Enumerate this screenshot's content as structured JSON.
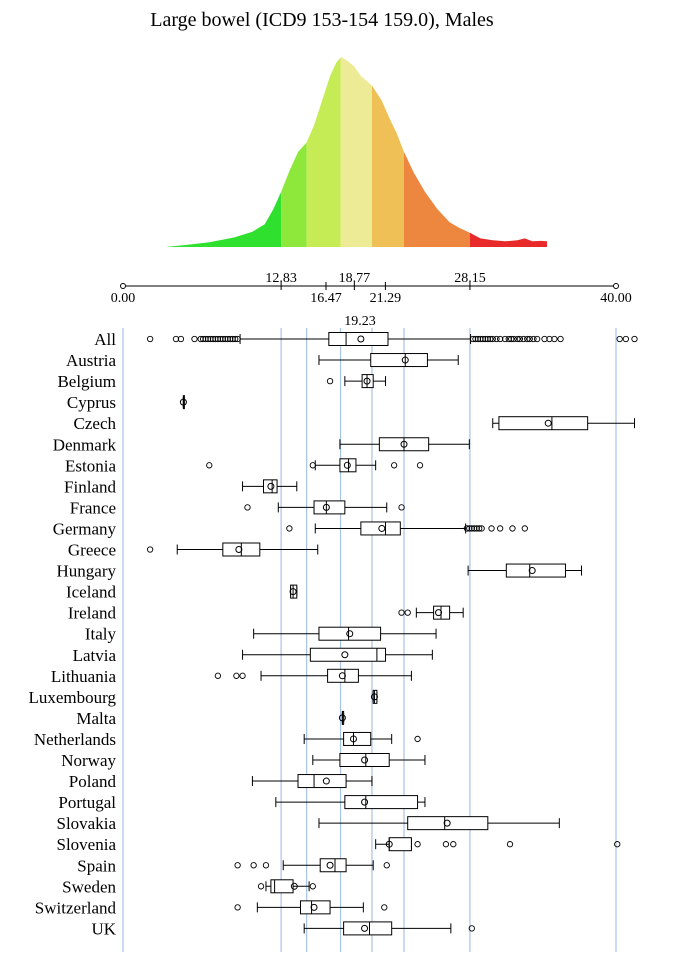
{
  "chart_data": {
    "type": "boxplot",
    "title": "Large bowel (ICD9 153-154 159.0), Males",
    "xlim": [
      0,
      40
    ],
    "axis_ticks": [
      0,
      40
    ],
    "axis_tick_labels": [
      "0.00",
      "40.00"
    ],
    "density_breaks": [
      12.83,
      16.47,
      18.77,
      21.29,
      28.15
    ],
    "density_break_labels": [
      "12.83",
      "16.47",
      "18.77",
      "21.29",
      "28.15"
    ],
    "median_value": 19.23,
    "median_label": "19.23",
    "reference_lines": [
      0,
      12.83,
      14.9,
      17.65,
      20.2,
      22.8,
      28.15,
      40
    ],
    "density_bands": [
      {
        "from": 3.6,
        "to": 12.83,
        "color": "#2fe02f"
      },
      {
        "from": 12.83,
        "to": 14.9,
        "color": "#8ee83c"
      },
      {
        "from": 14.9,
        "to": 17.65,
        "color": "#c5ec55"
      },
      {
        "from": 17.65,
        "to": 20.2,
        "color": "#eeeb97"
      },
      {
        "from": 20.2,
        "to": 22.8,
        "color": "#eec055"
      },
      {
        "from": 22.8,
        "to": 28.15,
        "color": "#ed8740"
      },
      {
        "from": 28.15,
        "to": 34.4,
        "color": "#e82a2a"
      }
    ],
    "density_curve": [
      [
        3.3,
        0.0
      ],
      [
        5,
        0.01
      ],
      [
        7,
        0.025
      ],
      [
        9,
        0.05
      ],
      [
        10.5,
        0.08
      ],
      [
        11.5,
        0.12
      ],
      [
        12.2,
        0.2
      ],
      [
        12.83,
        0.29
      ],
      [
        13.5,
        0.4
      ],
      [
        14.2,
        0.5
      ],
      [
        14.9,
        0.55
      ],
      [
        15.5,
        0.64
      ],
      [
        16.2,
        0.78
      ],
      [
        16.8,
        0.9
      ],
      [
        17.3,
        0.97
      ],
      [
        17.7,
        1.0
      ],
      [
        18.2,
        0.98
      ],
      [
        18.77,
        0.95
      ],
      [
        19.3,
        0.9
      ],
      [
        20.2,
        0.85
      ],
      [
        21.0,
        0.77
      ],
      [
        21.6,
        0.68
      ],
      [
        22.2,
        0.6
      ],
      [
        22.8,
        0.5
      ],
      [
        23.6,
        0.39
      ],
      [
        24.5,
        0.29
      ],
      [
        25.5,
        0.2
      ],
      [
        26.5,
        0.13
      ],
      [
        27.3,
        0.1
      ],
      [
        28.15,
        0.075
      ],
      [
        29,
        0.045
      ],
      [
        30,
        0.035
      ],
      [
        31,
        0.03
      ],
      [
        32,
        0.035
      ],
      [
        32.6,
        0.045
      ],
      [
        33.2,
        0.03
      ],
      [
        33.9,
        0.032
      ],
      [
        34.4,
        0.03
      ]
    ],
    "categories": [
      "All",
      "Austria",
      "Belgium",
      "Cyprus",
      "Czech",
      "Denmark",
      "Estonia",
      "Finland",
      "France",
      "Germany",
      "Greece",
      "Hungary",
      "Iceland",
      "Ireland",
      "Italy",
      "Latvia",
      "Lithuania",
      "Luxembourg",
      "Malta",
      "Netherlands",
      "Norway",
      "Poland",
      "Portugal",
      "Slovakia",
      "Slovenia",
      "Spain",
      "Sweden",
      "Switzerland",
      "UK"
    ],
    "boxes": [
      {
        "wlo": 9.5,
        "q1": 16.7,
        "med": 18.1,
        "q3": 21.5,
        "whi": 28.2,
        "mean": 19.3,
        "outliers": [
          2.2,
          4.3,
          4.7,
          5.8,
          6.3,
          6.5,
          6.7,
          6.9,
          7.1,
          7.3,
          7.5,
          7.7,
          7.9,
          8.1,
          8.3,
          8.5,
          8.7,
          8.9,
          9.1,
          9.3,
          28.4,
          28.6,
          28.8,
          29.0,
          29.2,
          29.4,
          29.6,
          29.8,
          30.0,
          30.3,
          30.6,
          31.0,
          31.3,
          31.5,
          31.7,
          32.0,
          32.2,
          32.5,
          32.8,
          33.0,
          33.3,
          33.6,
          34.2,
          34.6,
          35.0,
          35.5,
          40.3,
          40.8,
          41.5
        ]
      },
      {
        "wlo": 15.9,
        "q1": 20.1,
        "med": 22.9,
        "q3": 24.7,
        "whi": 27.2,
        "mean": 22.9,
        "outliers": []
      },
      {
        "wlo": 18.0,
        "q1": 19.4,
        "med": 19.8,
        "q3": 20.3,
        "whi": 21.3,
        "mean": 19.8,
        "outliers": [
          16.8
        ]
      },
      {
        "wlo": 4.9,
        "q1": 4.9,
        "med": 4.9,
        "q3": 4.9,
        "whi": 4.9,
        "mean": 4.9,
        "outliers": []
      },
      {
        "wlo": 30.0,
        "q1": 30.5,
        "med": 34.8,
        "q3": 37.7,
        "whi": 41.5,
        "mean": 34.5,
        "outliers": []
      },
      {
        "wlo": 17.6,
        "q1": 20.8,
        "med": 22.8,
        "q3": 24.8,
        "whi": 28.1,
        "mean": 22.8,
        "outliers": []
      },
      {
        "wlo": 15.6,
        "q1": 17.6,
        "med": 18.3,
        "q3": 18.9,
        "whi": 20.5,
        "mean": 18.2,
        "outliers": [
          7.0,
          15.4,
          22.0,
          24.1
        ]
      },
      {
        "wlo": 9.7,
        "q1": 11.4,
        "med": 12.1,
        "q3": 12.5,
        "whi": 14.1,
        "mean": 12.0,
        "outliers": []
      },
      {
        "wlo": 12.6,
        "q1": 15.5,
        "med": 16.5,
        "q3": 18.0,
        "whi": 21.4,
        "mean": 16.5,
        "outliers": [
          10.1,
          22.6
        ]
      },
      {
        "wlo": 15.6,
        "q1": 19.3,
        "med": 21.3,
        "q3": 22.5,
        "whi": 27.8,
        "mean": 21.0,
        "outliers": [
          13.5,
          27.9,
          28.1,
          28.3,
          28.5,
          28.7,
          28.9,
          29.1,
          29.9,
          30.6,
          31.6,
          32.6
        ]
      },
      {
        "wlo": 4.4,
        "q1": 8.1,
        "med": 9.6,
        "q3": 11.1,
        "whi": 15.8,
        "mean": 9.4,
        "outliers": [
          2.2
        ]
      },
      {
        "wlo": 28.0,
        "q1": 31.1,
        "med": 33.0,
        "q3": 35.9,
        "whi": 37.2,
        "mean": 33.2,
        "outliers": []
      },
      {
        "wlo": 13.6,
        "q1": 13.6,
        "med": 13.8,
        "q3": 14.1,
        "whi": 14.1,
        "mean": 13.8,
        "outliers": []
      },
      {
        "wlo": 23.8,
        "q1": 25.2,
        "med": 25.8,
        "q3": 26.5,
        "whi": 27.6,
        "mean": 25.6,
        "outliers": [
          22.6,
          23.1
        ]
      },
      {
        "wlo": 10.6,
        "q1": 15.9,
        "med": 18.3,
        "q3": 20.9,
        "whi": 25.4,
        "mean": 18.4,
        "outliers": []
      },
      {
        "wlo": 9.7,
        "q1": 15.2,
        "med": 20.6,
        "q3": 21.3,
        "whi": 25.1,
        "mean": 18.0,
        "outliers": []
      },
      {
        "wlo": 11.2,
        "q1": 16.6,
        "med": 18.0,
        "q3": 19.1,
        "whi": 23.4,
        "mean": 17.8,
        "outliers": [
          7.7,
          9.2,
          9.7
        ]
      },
      {
        "wlo": 20.3,
        "q1": 20.3,
        "med": 20.4,
        "q3": 20.6,
        "whi": 20.6,
        "mean": 20.4,
        "outliers": []
      },
      {
        "wlo": 17.8,
        "q1": 17.8,
        "med": 17.8,
        "q3": 17.9,
        "whi": 17.9,
        "mean": 17.8,
        "outliers": []
      },
      {
        "wlo": 14.7,
        "q1": 17.9,
        "med": 18.7,
        "q3": 20.1,
        "whi": 21.8,
        "mean": 18.7,
        "outliers": [
          23.9
        ]
      },
      {
        "wlo": 15.4,
        "q1": 17.6,
        "med": 19.7,
        "q3": 21.6,
        "whi": 24.5,
        "mean": 19.6,
        "outliers": []
      },
      {
        "wlo": 10.5,
        "q1": 14.2,
        "med": 15.5,
        "q3": 18.1,
        "whi": 20.2,
        "mean": 16.5,
        "outliers": []
      },
      {
        "wlo": 12.4,
        "q1": 18.0,
        "med": 19.7,
        "q3": 23.9,
        "whi": 24.5,
        "mean": 19.6,
        "outliers": []
      },
      {
        "wlo": 15.9,
        "q1": 23.1,
        "med": 26.1,
        "q3": 29.6,
        "whi": 35.4,
        "mean": 26.3,
        "outliers": []
      },
      {
        "wlo": 20.5,
        "q1": 21.6,
        "med": 21.6,
        "q3": 23.4,
        "whi": 23.4,
        "mean": 21.6,
        "outliers": [
          23.9,
          26.2,
          26.8,
          31.4,
          40.1
        ]
      },
      {
        "wlo": 13.0,
        "q1": 16.0,
        "med": 17.2,
        "q3": 18.1,
        "whi": 20.3,
        "mean": 16.8,
        "outliers": [
          9.3,
          10.6,
          11.6,
          21.4
        ]
      },
      {
        "wlo": 11.6,
        "q1": 12.0,
        "med": 12.3,
        "q3": 13.8,
        "whi": 15.1,
        "mean": 13.9,
        "outliers": [
          11.2,
          15.4
        ]
      },
      {
        "wlo": 10.9,
        "q1": 14.4,
        "med": 15.3,
        "q3": 16.8,
        "whi": 19.5,
        "mean": 15.5,
        "outliers": [
          9.3,
          21.2
        ]
      },
      {
        "wlo": 14.7,
        "q1": 17.9,
        "med": 20.0,
        "q3": 21.8,
        "whi": 26.6,
        "mean": 19.6,
        "outliers": [
          28.3
        ]
      }
    ]
  }
}
